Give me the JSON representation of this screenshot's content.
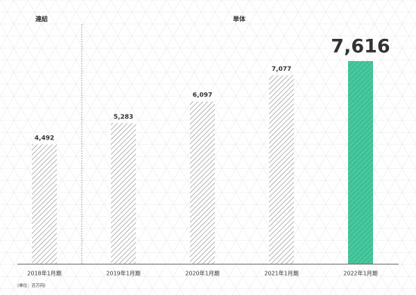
{
  "chart_data": {
    "type": "bar",
    "group_labels": [
      "連結",
      "単体"
    ],
    "unit_note": "(単位：百万円)",
    "categories": [
      "2018年1月期",
      "2019年1月期",
      "2020年1月期",
      "2021年1月期",
      "2022年1月期"
    ],
    "values": [
      4492,
      5283,
      6097,
      7077,
      7616
    ],
    "value_labels": [
      "4,492",
      "5,283",
      "6,097",
      "7,077",
      "7,616"
    ],
    "colors": [
      "#9a9a9a",
      "#9a9a9a",
      "#9a9a9a",
      "#9a9a9a",
      "#3cc195"
    ]
  }
}
